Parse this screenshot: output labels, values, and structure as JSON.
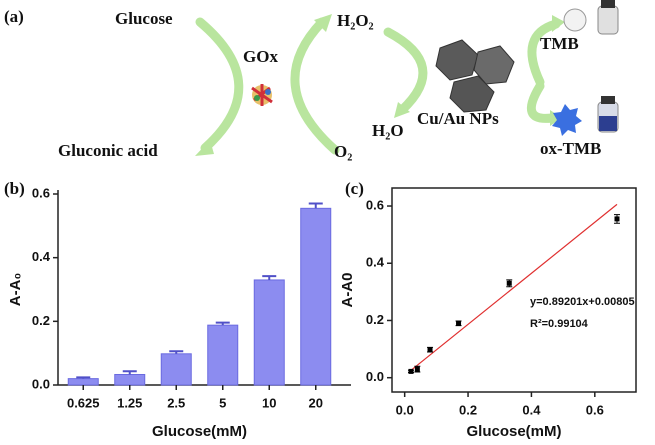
{
  "diagram": {
    "label": "(a)",
    "glucose": "Glucose",
    "enzyme": "GOx",
    "gluconic_acid": "Gluconic acid",
    "h2o2": "H₂O₂",
    "o2": "O₂",
    "h2o": "H₂O",
    "catalyst": "Cu/Au NPs",
    "tmb": "TMB",
    "ox_tmb": "ox-TMB"
  },
  "chart_data": [
    {
      "type": "bar",
      "panel_label": "(b)",
      "categories": [
        "0.625",
        "1.25",
        "2.5",
        "5",
        "10",
        "20"
      ],
      "values": [
        0.02,
        0.033,
        0.098,
        0.188,
        0.33,
        0.555
      ],
      "errors": [
        0.004,
        0.01,
        0.008,
        0.008,
        0.012,
        0.015
      ],
      "color": "#8c8cf0",
      "ylim": [
        0,
        0.6
      ],
      "yticks": [
        {
          "value": 0,
          "label": "0.0"
        },
        0.2,
        0.4,
        0.6
      ],
      "xlabel": "Glucose(mM)",
      "ylabel": "A-A₀"
    },
    {
      "type": "scatter",
      "panel_label": "(c)",
      "x": [
        0.02,
        0.04,
        0.08,
        0.17,
        0.33,
        0.67
      ],
      "y": [
        0.022,
        0.03,
        0.098,
        0.19,
        0.33,
        0.555
      ],
      "errors": [
        0.004,
        0.01,
        0.008,
        0.008,
        0.012,
        0.015
      ],
      "color": "#000000",
      "xlim": [
        -0.04,
        0.73
      ],
      "ylim": [
        -0.05,
        0.663
      ],
      "xticks": [
        {
          "value": 0,
          "label": "0.0"
        },
        0.2,
        0.4,
        0.6
      ],
      "yticks": [
        {
          "value": 0,
          "label": "0.0"
        },
        0.2,
        0.4,
        0.6
      ],
      "xlabel": "Glucose(mM)",
      "ylabel": "A-A0",
      "fit": {
        "equation": "y=0.89201x+0.00805",
        "r2": "R²=0.99104",
        "x": [
          0.015,
          0.67
        ],
        "y": [
          0.0214,
          0.6057
        ],
        "color": "#e03030"
      }
    }
  ]
}
